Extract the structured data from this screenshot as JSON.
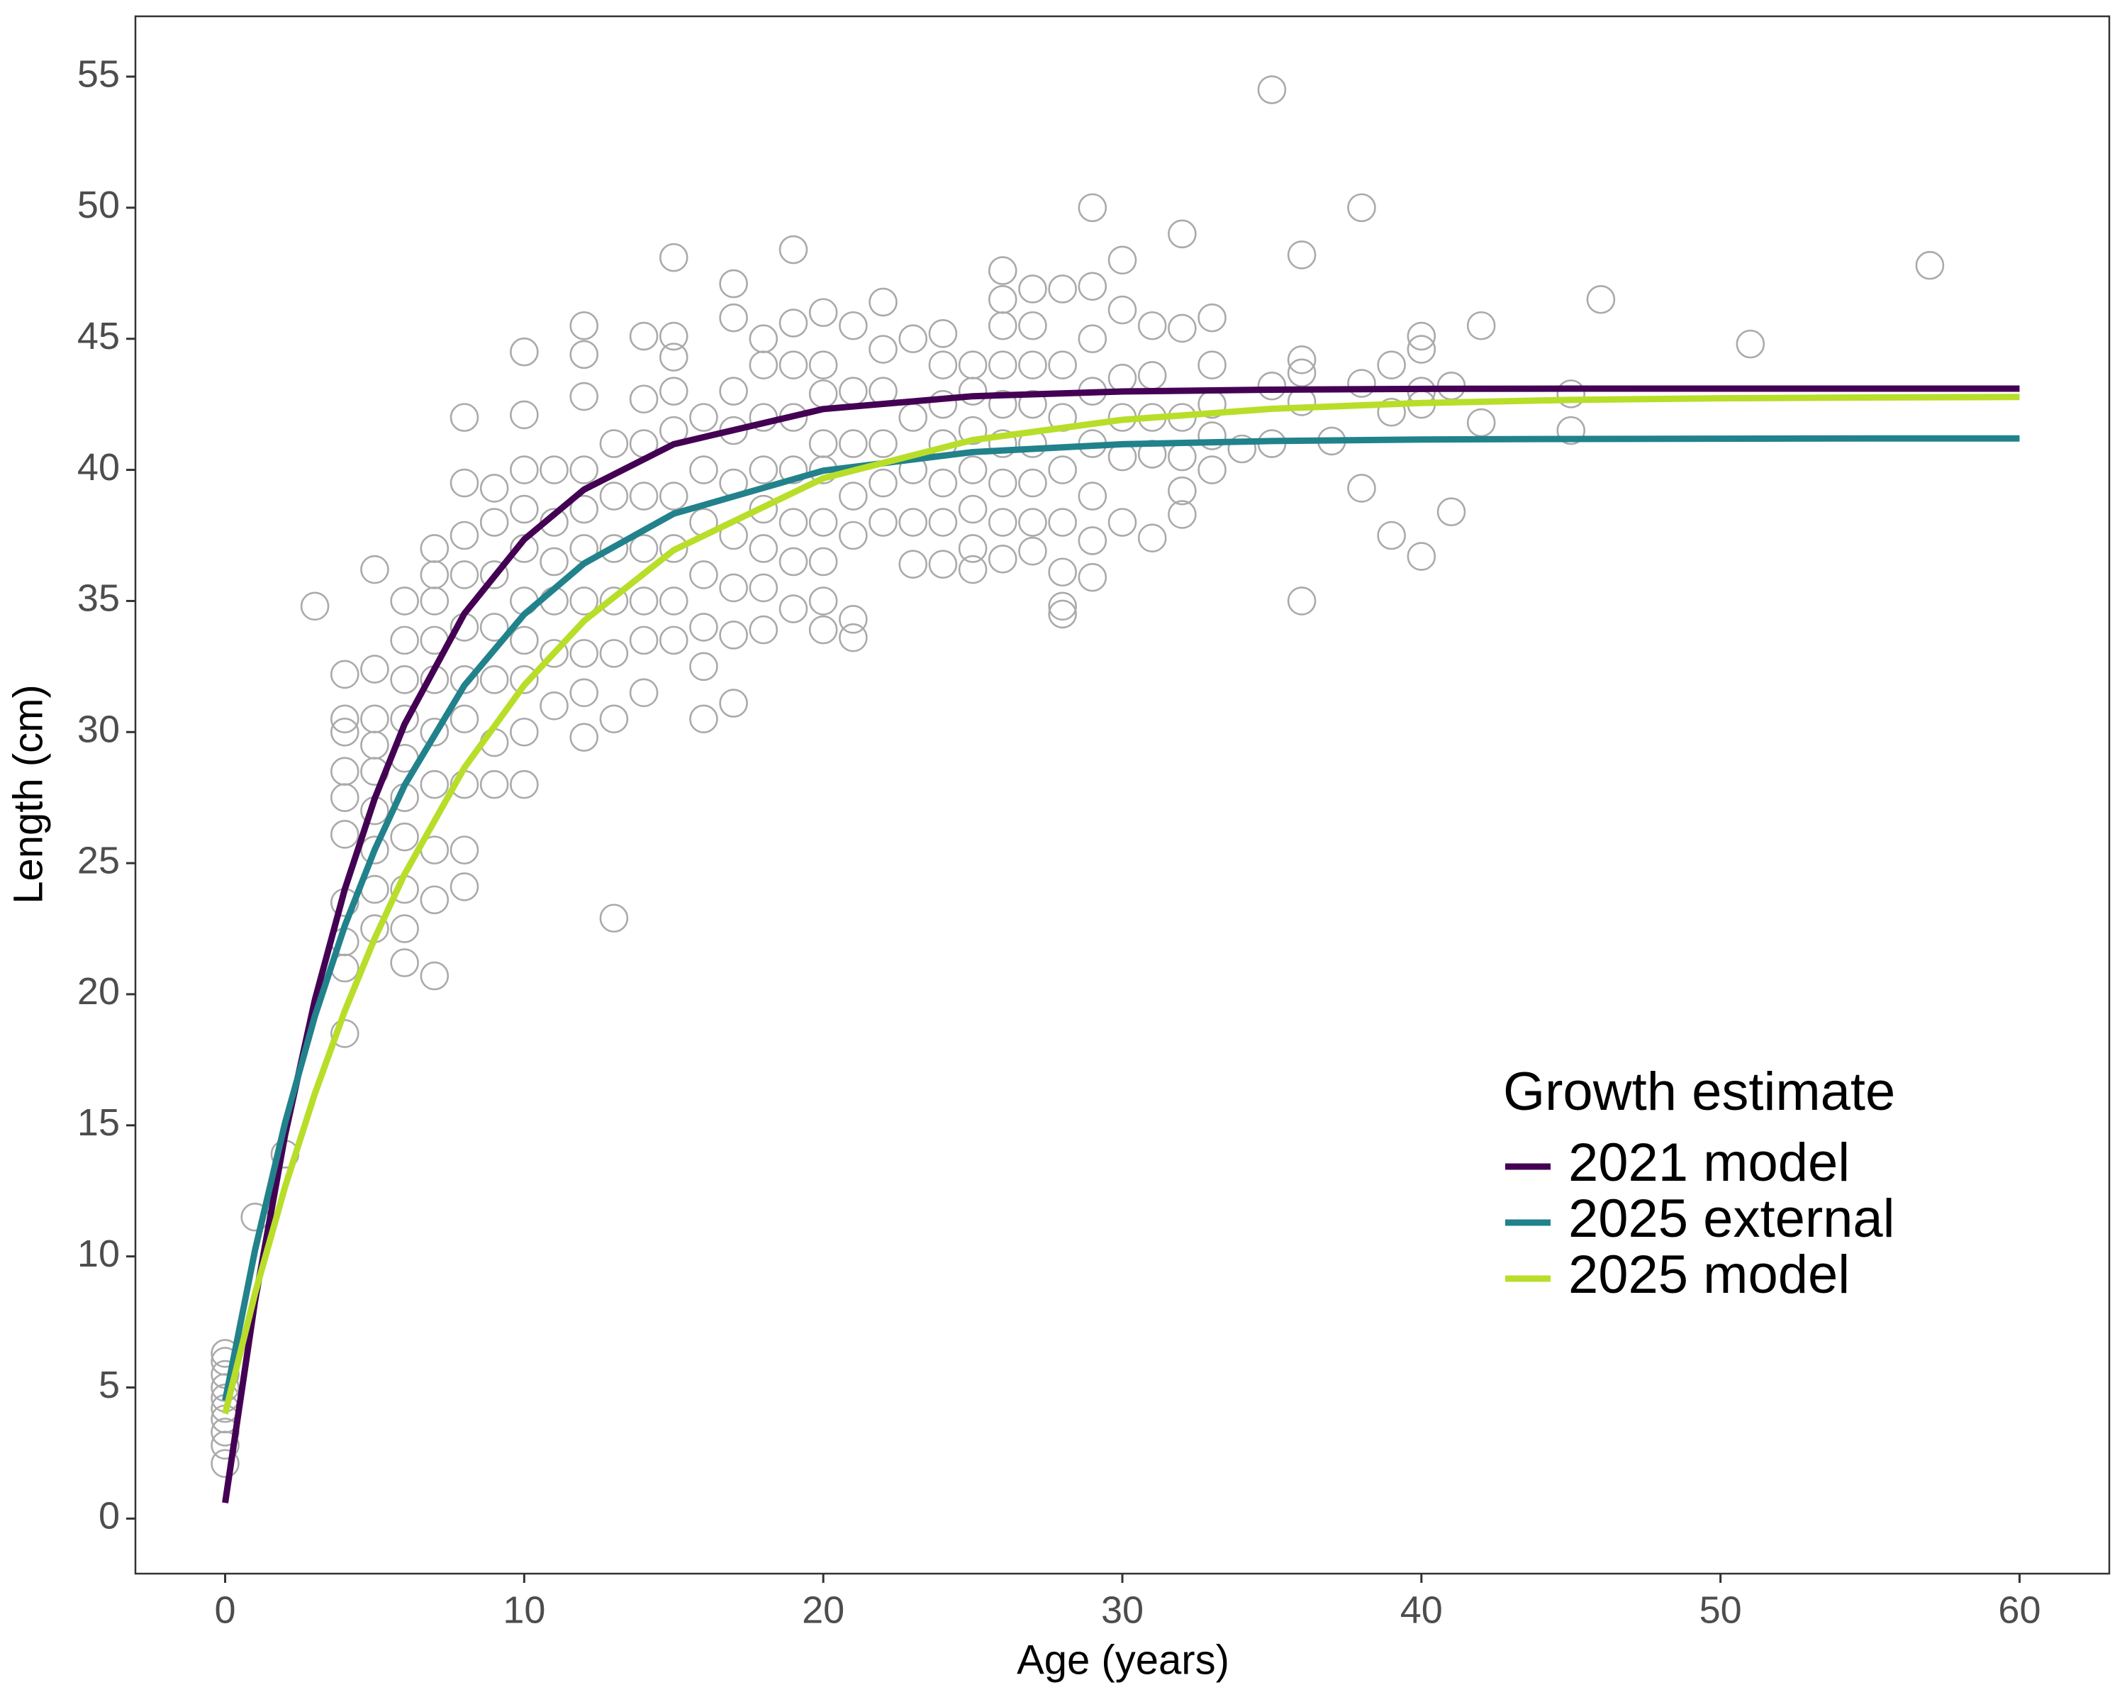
{
  "chart_data": {
    "type": "scatter",
    "xlabel": "Age (years)",
    "ylabel": "Length (cm)",
    "xlim": [
      -3,
      63
    ],
    "ylim": [
      -2.1,
      57.3
    ],
    "xticks": [
      0,
      10,
      20,
      30,
      40,
      50,
      60
    ],
    "yticks": [
      0,
      5,
      10,
      15,
      20,
      25,
      30,
      35,
      40,
      45,
      50,
      55
    ],
    "grid": false,
    "legend_title": "Growth estimate",
    "scatter": {
      "color": "#aaaaaa",
      "points": [
        [
          0,
          2.1
        ],
        [
          0,
          2.8
        ],
        [
          0,
          3.3
        ],
        [
          0,
          3.8
        ],
        [
          0,
          4.2
        ],
        [
          0,
          4.6
        ],
        [
          0,
          5.0
        ],
        [
          0,
          5.5
        ],
        [
          0,
          6.0
        ],
        [
          0,
          6.3
        ],
        [
          1,
          11.5
        ],
        [
          2,
          13.9
        ],
        [
          3,
          34.8
        ],
        [
          4,
          18.5
        ],
        [
          4,
          21
        ],
        [
          4,
          22
        ],
        [
          4,
          23.5
        ],
        [
          4,
          26.1
        ],
        [
          4,
          27.5
        ],
        [
          4,
          28.5
        ],
        [
          4,
          30
        ],
        [
          4,
          30.5
        ],
        [
          4,
          32.2
        ],
        [
          5,
          22.5
        ],
        [
          5,
          24
        ],
        [
          5,
          25.5
        ],
        [
          5,
          27
        ],
        [
          5,
          28.5
        ],
        [
          5,
          29.5
        ],
        [
          5,
          30.5
        ],
        [
          5,
          32.4
        ],
        [
          5,
          36.2
        ],
        [
          6,
          21.2
        ],
        [
          6,
          22.5
        ],
        [
          6,
          24
        ],
        [
          6,
          26
        ],
        [
          6,
          27.5
        ],
        [
          6,
          29
        ],
        [
          6,
          30.5
        ],
        [
          6,
          32
        ],
        [
          6,
          33.5
        ],
        [
          6,
          35
        ],
        [
          7,
          20.7
        ],
        [
          7,
          23.6
        ],
        [
          7,
          25.5
        ],
        [
          7,
          28
        ],
        [
          7,
          30
        ],
        [
          7,
          32
        ],
        [
          7,
          33.5
        ],
        [
          7,
          35
        ],
        [
          7,
          36
        ],
        [
          7,
          37
        ],
        [
          8,
          24.1
        ],
        [
          8,
          25.5
        ],
        [
          8,
          28
        ],
        [
          8,
          30.5
        ],
        [
          8,
          32
        ],
        [
          8,
          34
        ],
        [
          8,
          36
        ],
        [
          8,
          37.5
        ],
        [
          8,
          39.5
        ],
        [
          8,
          42
        ],
        [
          9,
          28
        ],
        [
          9,
          29.6
        ],
        [
          9,
          32
        ],
        [
          9,
          34
        ],
        [
          9,
          36
        ],
        [
          9,
          38
        ],
        [
          9,
          39.3
        ],
        [
          10,
          28
        ],
        [
          10,
          30
        ],
        [
          10,
          32
        ],
        [
          10,
          33.5
        ],
        [
          10,
          35
        ],
        [
          10,
          37
        ],
        [
          10,
          38.5
        ],
        [
          10,
          40
        ],
        [
          10,
          42.1
        ],
        [
          10,
          44.5
        ],
        [
          11,
          31
        ],
        [
          11,
          33
        ],
        [
          11,
          35
        ],
        [
          11,
          36.5
        ],
        [
          11,
          38
        ],
        [
          11,
          40
        ],
        [
          12,
          29.8
        ],
        [
          12,
          31.5
        ],
        [
          12,
          33
        ],
        [
          12,
          35
        ],
        [
          12,
          37
        ],
        [
          12,
          38.5
        ],
        [
          12,
          40
        ],
        [
          12,
          42.8
        ],
        [
          12,
          44.4
        ],
        [
          12,
          45.5
        ],
        [
          13,
          22.9
        ],
        [
          13,
          30.5
        ],
        [
          13,
          33
        ],
        [
          13,
          35
        ],
        [
          13,
          37
        ],
        [
          13,
          39
        ],
        [
          13,
          41
        ],
        [
          14,
          31.5
        ],
        [
          14,
          33.5
        ],
        [
          14,
          35
        ],
        [
          14,
          37
        ],
        [
          14,
          39
        ],
        [
          14,
          41
        ],
        [
          14,
          42.7
        ],
        [
          14,
          45.1
        ],
        [
          15,
          33.5
        ],
        [
          15,
          35
        ],
        [
          15,
          37
        ],
        [
          15,
          39
        ],
        [
          15,
          41.5
        ],
        [
          15,
          43
        ],
        [
          15,
          44.3
        ],
        [
          15,
          45.1
        ],
        [
          15,
          48.1
        ],
        [
          16,
          30.5
        ],
        [
          16,
          32.5
        ],
        [
          16,
          34
        ],
        [
          16,
          36
        ],
        [
          16,
          38
        ],
        [
          16,
          40
        ],
        [
          16,
          42
        ],
        [
          17,
          31.1
        ],
        [
          17,
          33.7
        ],
        [
          17,
          35.5
        ],
        [
          17,
          37.5
        ],
        [
          17,
          39.5
        ],
        [
          17,
          41.5
        ],
        [
          17,
          43
        ],
        [
          17,
          45.8
        ],
        [
          17,
          47.1
        ],
        [
          18,
          33.9
        ],
        [
          18,
          35.5
        ],
        [
          18,
          37
        ],
        [
          18,
          38.5
        ],
        [
          18,
          40
        ],
        [
          18,
          42
        ],
        [
          18,
          44
        ],
        [
          18,
          45
        ],
        [
          19,
          34.7
        ],
        [
          19,
          36.5
        ],
        [
          19,
          38
        ],
        [
          19,
          40
        ],
        [
          19,
          42
        ],
        [
          19,
          44
        ],
        [
          19,
          45.6
        ],
        [
          19,
          48.4
        ],
        [
          20,
          33.9
        ],
        [
          20,
          35
        ],
        [
          20,
          36.5
        ],
        [
          20,
          38
        ],
        [
          20,
          40
        ],
        [
          20,
          41
        ],
        [
          20,
          42.9
        ],
        [
          20,
          44
        ],
        [
          20,
          46
        ],
        [
          21,
          33.6
        ],
        [
          21,
          34.3
        ],
        [
          21,
          37.5
        ],
        [
          21,
          39
        ],
        [
          21,
          41
        ],
        [
          21,
          43
        ],
        [
          21,
          45.5
        ],
        [
          22,
          38
        ],
        [
          22,
          39.5
        ],
        [
          22,
          41
        ],
        [
          22,
          43
        ],
        [
          22,
          44.6
        ],
        [
          22,
          46.4
        ],
        [
          23,
          36.4
        ],
        [
          23,
          38
        ],
        [
          23,
          40
        ],
        [
          23,
          42
        ],
        [
          23,
          45
        ],
        [
          24,
          36.4
        ],
        [
          24,
          38
        ],
        [
          24,
          39.5
        ],
        [
          24,
          41
        ],
        [
          24,
          42.5
        ],
        [
          24,
          44
        ],
        [
          24,
          45.2
        ],
        [
          25,
          36.2
        ],
        [
          25,
          37
        ],
        [
          25,
          38.5
        ],
        [
          25,
          40
        ],
        [
          25,
          41.5
        ],
        [
          25,
          43
        ],
        [
          25,
          44
        ],
        [
          26,
          36.6
        ],
        [
          26,
          38
        ],
        [
          26,
          39.5
        ],
        [
          26,
          41
        ],
        [
          26,
          42.5
        ],
        [
          26,
          44
        ],
        [
          26,
          45.5
        ],
        [
          26,
          46.5
        ],
        [
          26,
          47.6
        ],
        [
          27,
          36.9
        ],
        [
          27,
          38
        ],
        [
          27,
          39.5
        ],
        [
          27,
          41
        ],
        [
          27,
          42.5
        ],
        [
          27,
          44
        ],
        [
          27,
          45.5
        ],
        [
          27,
          46.9
        ],
        [
          28,
          34.5
        ],
        [
          28,
          34.8
        ],
        [
          28,
          36.1
        ],
        [
          28,
          38
        ],
        [
          28,
          40
        ],
        [
          28,
          42
        ],
        [
          28,
          44
        ],
        [
          28,
          46.9
        ],
        [
          29,
          35.9
        ],
        [
          29,
          37.3
        ],
        [
          29,
          39
        ],
        [
          29,
          41
        ],
        [
          29,
          43
        ],
        [
          29,
          45
        ],
        [
          29,
          47
        ],
        [
          29,
          50
        ],
        [
          30,
          38
        ],
        [
          30,
          40.5
        ],
        [
          30,
          42
        ],
        [
          30,
          43.5
        ],
        [
          30,
          46.1
        ],
        [
          30,
          48
        ],
        [
          31,
          37.4
        ],
        [
          31,
          40.6
        ],
        [
          31,
          42
        ],
        [
          31,
          43.6
        ],
        [
          31,
          45.5
        ],
        [
          32,
          38.3
        ],
        [
          32,
          39.2
        ],
        [
          32,
          40.5
        ],
        [
          32,
          42
        ],
        [
          32,
          45.4
        ],
        [
          32,
          49
        ],
        [
          33,
          40
        ],
        [
          33,
          41.3
        ],
        [
          33,
          42.5
        ],
        [
          33,
          44
        ],
        [
          33,
          45.8
        ],
        [
          34,
          40.8
        ],
        [
          35,
          41
        ],
        [
          35,
          43.2
        ],
        [
          35,
          54.5
        ],
        [
          36,
          35
        ],
        [
          36,
          42.6
        ],
        [
          36,
          43.7
        ],
        [
          36,
          44.2
        ],
        [
          36,
          48.2
        ],
        [
          37,
          41.1
        ],
        [
          38,
          39.3
        ],
        [
          38,
          43.3
        ],
        [
          38,
          50
        ],
        [
          39,
          37.5
        ],
        [
          39,
          42.2
        ],
        [
          39,
          44
        ],
        [
          40,
          36.7
        ],
        [
          40,
          42.5
        ],
        [
          40,
          43
        ],
        [
          40,
          44.6
        ],
        [
          40,
          45.1
        ],
        [
          41,
          38.4
        ],
        [
          41,
          43.2
        ],
        [
          42,
          41.8
        ],
        [
          42,
          45.5
        ],
        [
          45,
          41.5
        ],
        [
          45,
          42.9
        ],
        [
          46,
          46.5
        ],
        [
          51,
          44.8
        ],
        [
          57,
          47.8
        ]
      ]
    },
    "x": [
      0,
      1,
      2,
      3,
      4,
      5,
      6,
      8,
      10,
      12,
      15,
      20,
      25,
      30,
      35,
      40,
      45,
      50,
      55,
      60
    ],
    "series": [
      {
        "name": "2021 model",
        "color": "#440154",
        "values": [
          0.6,
          8.3,
          14.61,
          19.78,
          24.0,
          27.46,
          30.3,
          34.52,
          37.35,
          39.25,
          40.98,
          42.32,
          42.81,
          42.99,
          43.06,
          43.09,
          43.1,
          43.1,
          43.1,
          43.1
        ]
      },
      {
        "name": "2025 external",
        "color": "#21828b",
        "values": [
          4.5,
          10.24,
          15.08,
          19.16,
          22.61,
          25.51,
          27.97,
          31.78,
          34.49,
          36.43,
          38.33,
          39.97,
          40.68,
          40.98,
          41.1,
          41.16,
          41.18,
          41.19,
          41.2,
          41.2
        ]
      },
      {
        "name": "2025 model",
        "color": "#b8de29",
        "values": [
          4.0,
          8.59,
          12.64,
          16.21,
          19.36,
          22.13,
          24.58,
          28.64,
          31.79,
          34.24,
          36.94,
          39.68,
          41.14,
          41.91,
          42.33,
          42.55,
          42.67,
          42.73,
          42.76,
          42.78
        ]
      }
    ]
  }
}
